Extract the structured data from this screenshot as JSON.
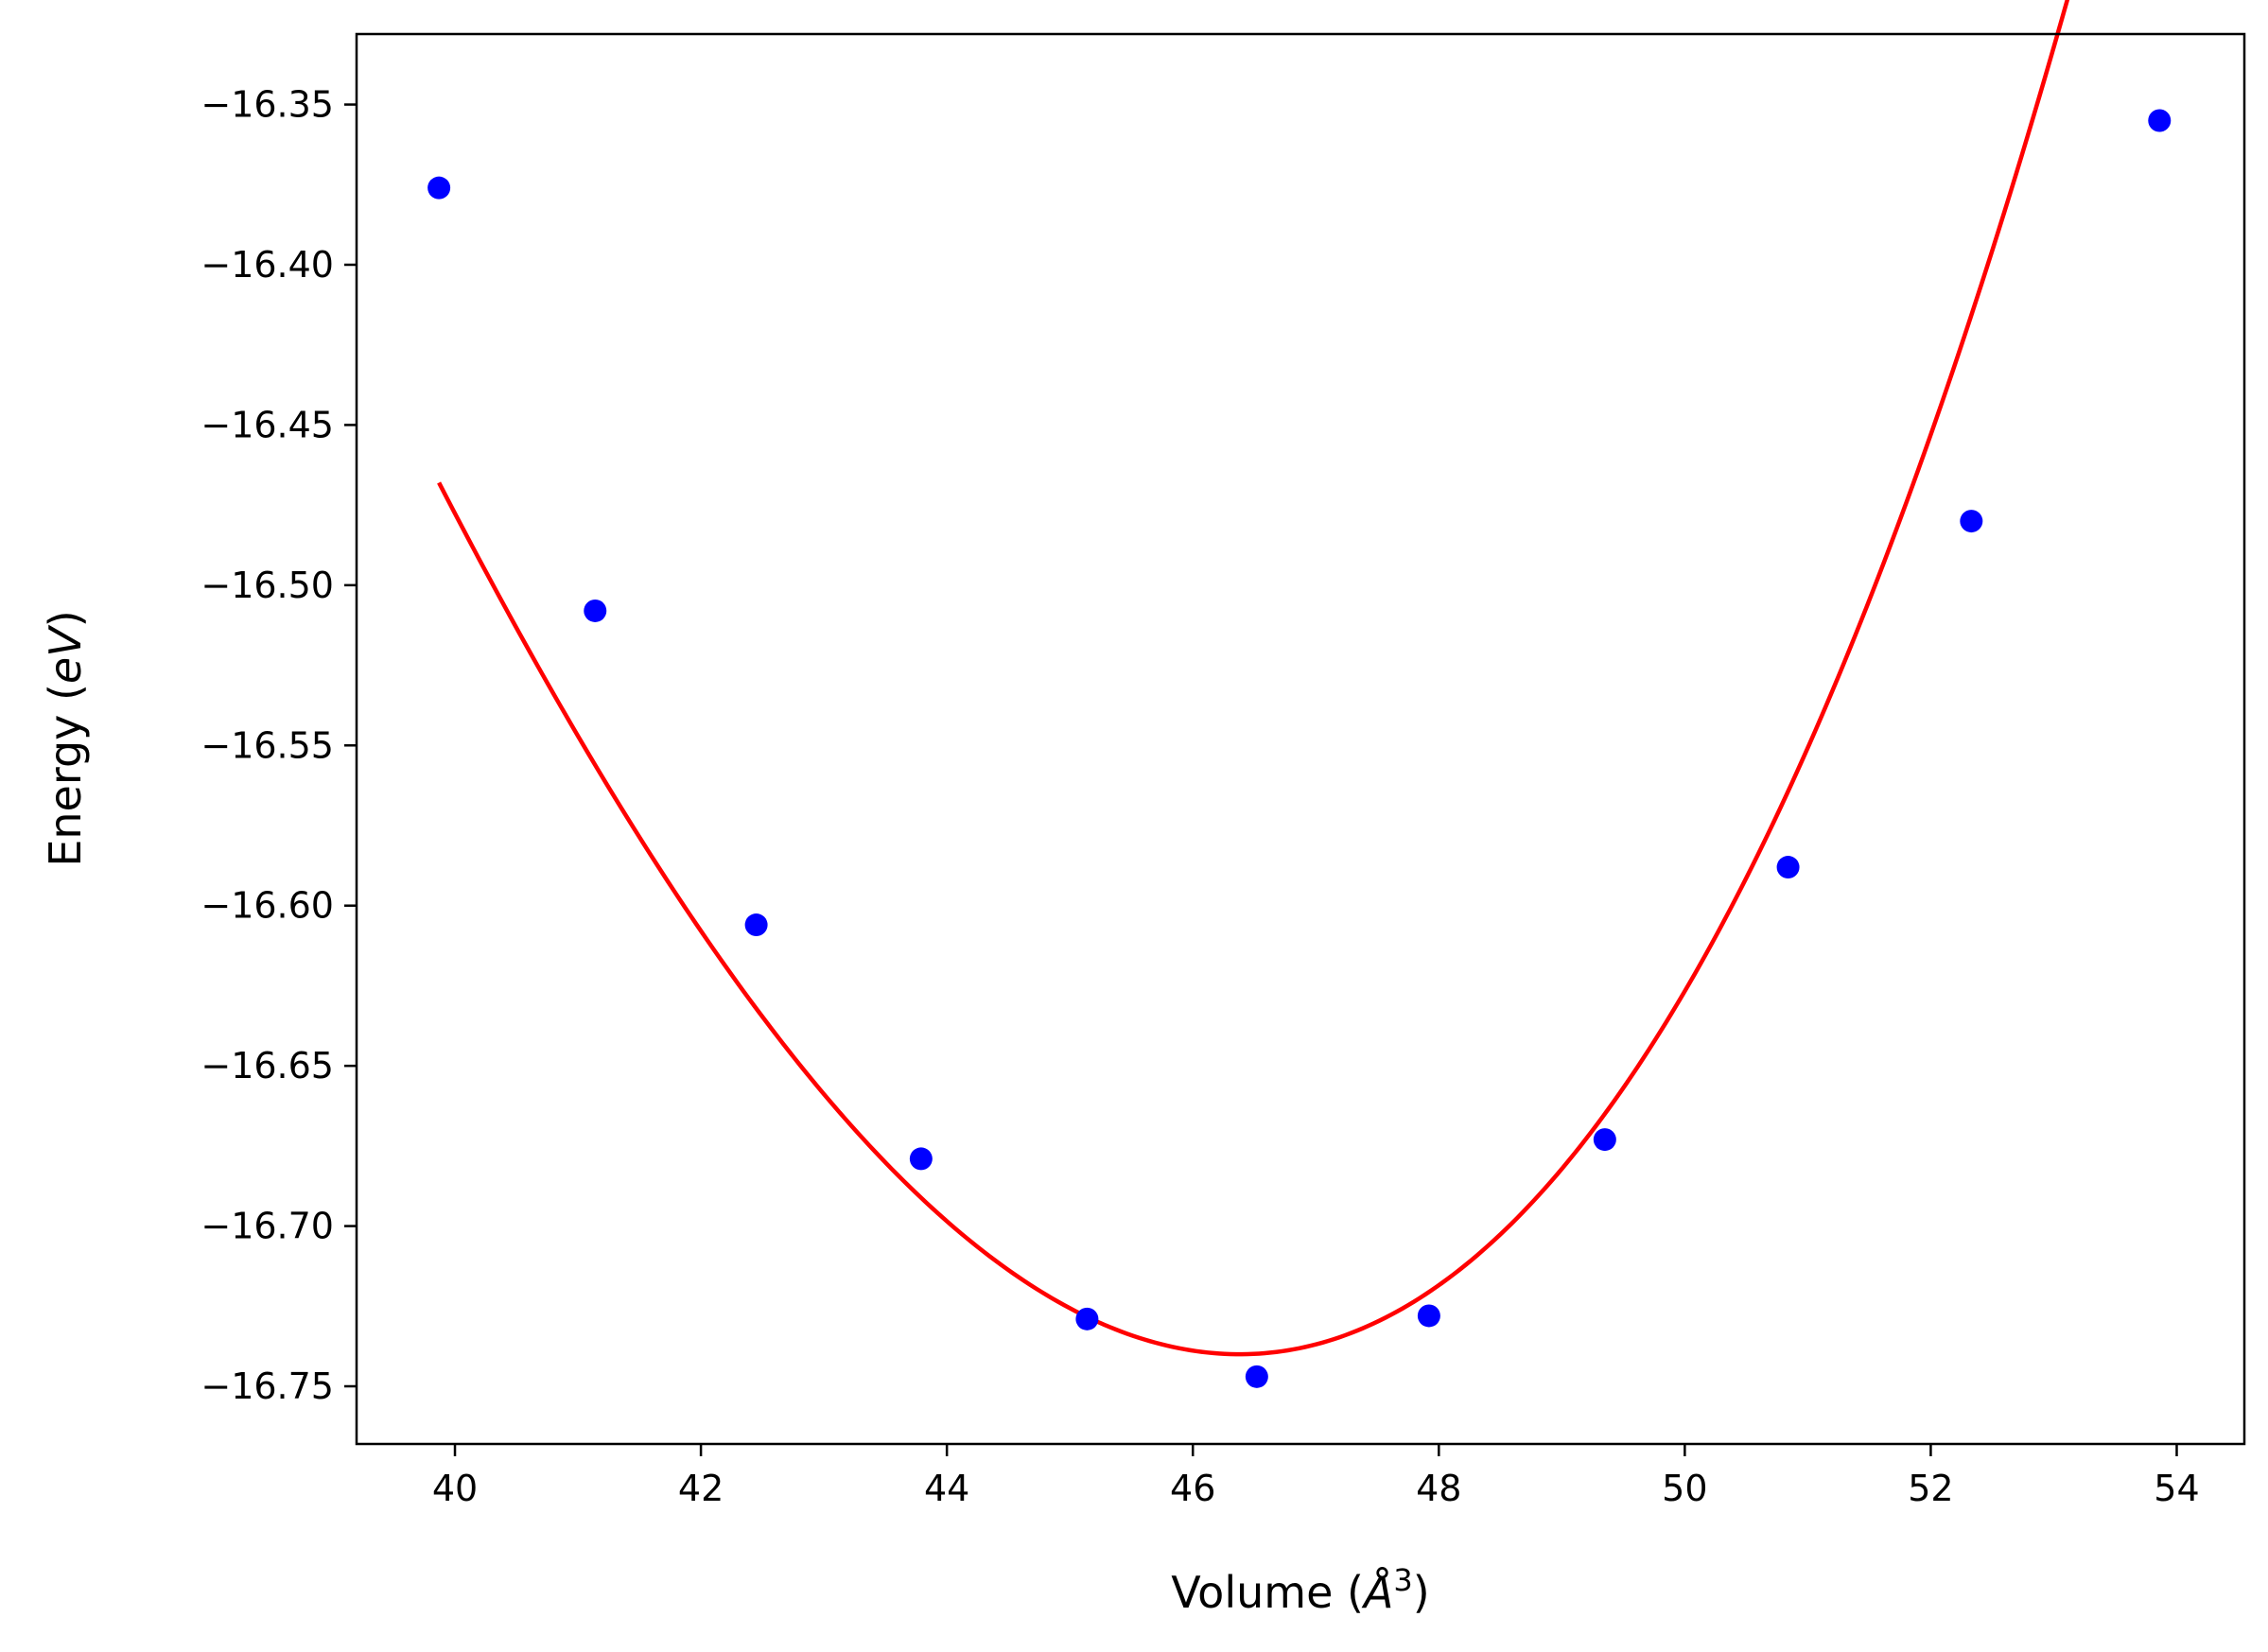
{
  "chart_data": {
    "type": "scatter",
    "title": "",
    "xlabel_text": "Volume (",
    "xlabel_unit": "Å",
    "xlabel_exp": "3",
    "xlabel_close": ")",
    "ylabel_text": "Energy (",
    "ylabel_unit": "eV",
    "ylabel_close": ")",
    "xlim": [
      39.2,
      54.55
    ],
    "ylim": [
      -16.768,
      -16.328
    ],
    "x_ticks": [
      40,
      42,
      44,
      46,
      48,
      50,
      52,
      54
    ],
    "x_tick_labels": [
      "40",
      "42",
      "44",
      "46",
      "48",
      "50",
      "52",
      "54"
    ],
    "y_ticks": [
      -16.35,
      -16.4,
      -16.45,
      -16.5,
      -16.55,
      -16.6,
      -16.65,
      -16.7,
      -16.75
    ],
    "y_tick_labels": [
      "−16.35",
      "−16.40",
      "−16.45",
      "−16.50",
      "−16.55",
      "−16.60",
      "−16.65",
      "−16.70",
      "−16.75"
    ],
    "grid": false,
    "series": [
      {
        "kind": "points",
        "color": "#0000ff",
        "x": [
          39.87,
          41.14,
          42.45,
          43.79,
          45.14,
          46.52,
          47.92,
          49.35,
          50.84,
          52.33,
          53.86
        ],
        "y": [
          -16.376,
          -16.508,
          -16.606,
          -16.679,
          -16.729,
          -16.747,
          -16.728,
          -16.673,
          -16.588,
          -16.48,
          -16.355
        ]
      },
      {
        "kind": "fit-curve",
        "color": "#ff0000",
        "x_range": [
          39.87,
          53.86
        ],
        "min_volume": 46.38,
        "min_energy": -16.74,
        "c2": 0.00785,
        "c3": 0.00022
      }
    ]
  }
}
